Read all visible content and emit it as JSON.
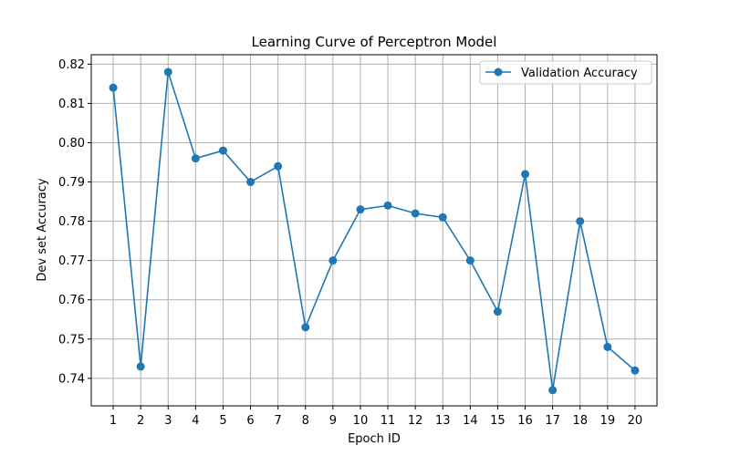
{
  "chart_data": {
    "type": "line",
    "title": "Learning Curve of Perceptron Model",
    "xlabel": "Epoch ID",
    "ylabel": "Dev set Accuracy",
    "grid": true,
    "legend_position": "top-right",
    "xlim": [
      0.2,
      20.8
    ],
    "ylim": [
      0.733,
      0.8224
    ],
    "x": [
      1,
      2,
      3,
      4,
      5,
      6,
      7,
      8,
      9,
      10,
      11,
      12,
      13,
      14,
      15,
      16,
      17,
      18,
      19,
      20
    ],
    "xticks": [
      "1",
      "2",
      "3",
      "4",
      "5",
      "6",
      "7",
      "8",
      "9",
      "10",
      "11",
      "12",
      "13",
      "14",
      "15",
      "16",
      "17",
      "18",
      "19",
      "20"
    ],
    "yticks": [
      0.74,
      0.75,
      0.76,
      0.77,
      0.78,
      0.79,
      0.8,
      0.81,
      0.82
    ],
    "ytick_labels": [
      "0.74",
      "0.75",
      "0.76",
      "0.77",
      "0.78",
      "0.79",
      "0.80",
      "0.81",
      "0.82"
    ],
    "series": [
      {
        "name": "Validation Accuracy",
        "color": "#1f77b4",
        "marker": "circle",
        "values": [
          0.814,
          0.743,
          0.818,
          0.796,
          0.798,
          0.79,
          0.794,
          0.753,
          0.77,
          0.783,
          0.784,
          0.782,
          0.781,
          0.77,
          0.757,
          0.792,
          0.737,
          0.78,
          0.748,
          0.742
        ]
      }
    ]
  }
}
